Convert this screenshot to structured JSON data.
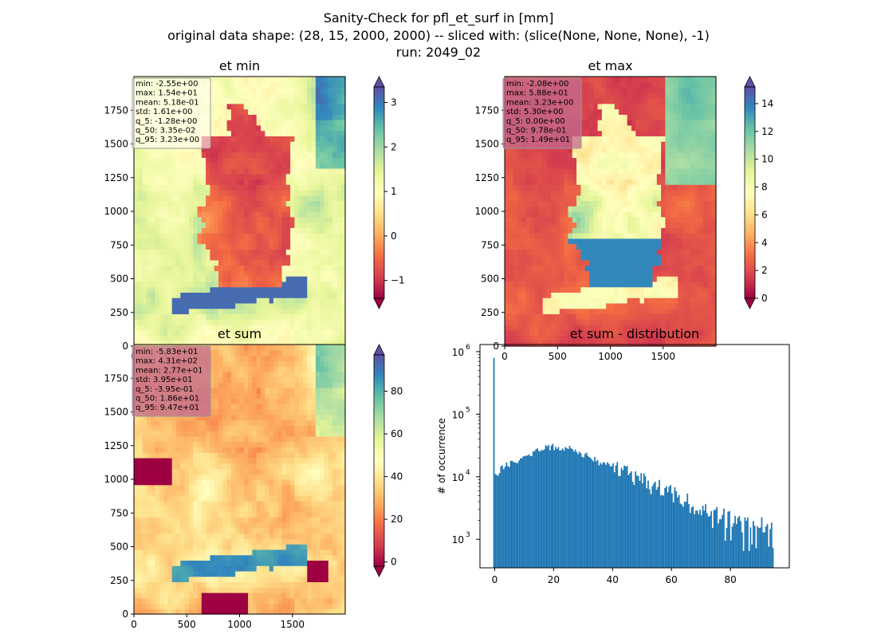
{
  "figure": {
    "suptitle_lines": [
      "Sanity-Check for pfl_et_surf in [mm]",
      "original data shape: (28, 15, 2000, 2000) -- sliced with: (slice(None, None, None), -1)",
      "run: 2049_02"
    ]
  },
  "colors": {
    "spectral": [
      "#9e0142",
      "#d53e4f",
      "#f46d43",
      "#fdae61",
      "#fee08b",
      "#ffffbf",
      "#e6f598",
      "#abdda4",
      "#66c2a5",
      "#3288bd",
      "#5e4fa2"
    ],
    "hist_bar": "#1f77b4",
    "statbox_bg": "#c26b8f"
  },
  "chart_data": [
    {
      "id": "et_min",
      "type": "heatmap",
      "title": "et min",
      "x_ticks": [
        "0",
        "500",
        "1000",
        "1500"
      ],
      "y_ticks": [
        "0",
        "250",
        "500",
        "750",
        "1000",
        "1250",
        "1500",
        "1750"
      ],
      "xlim": [
        0,
        2000
      ],
      "ylim": [
        0,
        2000
      ],
      "colorbar": {
        "ticks": [
          "−1",
          "0",
          "1",
          "2",
          "3"
        ],
        "tick_values": [
          -1,
          0,
          1,
          2,
          3
        ],
        "vmin": -1.4,
        "vmax": 3.35,
        "extend": "both"
      },
      "stats": [
        "min: -2.55e+00",
        "max: 1.54e+01",
        "mean: 5.18e-01",
        "std: 1.61e+00",
        "q_5: -1.28e+00",
        "q_50: 3.35e-02",
        "q_95: 3.23e+00"
      ]
    },
    {
      "id": "et_max",
      "type": "heatmap",
      "title": "et max",
      "x_ticks": [
        "0",
        "500",
        "1000",
        "1500"
      ],
      "y_ticks": [
        "0",
        "250",
        "500",
        "750",
        "1000",
        "1250",
        "1500",
        "1750"
      ],
      "xlim": [
        0,
        2000
      ],
      "ylim": [
        0,
        2000
      ],
      "colorbar": {
        "ticks": [
          "0",
          "2",
          "4",
          "6",
          "8",
          "10",
          "12",
          "14"
        ],
        "tick_values": [
          0,
          2,
          4,
          6,
          8,
          10,
          12,
          14
        ],
        "vmin": 0,
        "vmax": 15.2,
        "extend": "both"
      },
      "stats": [
        "min: -2.08e+00",
        "max: 5.88e+01",
        "mean: 3.23e+00",
        "std: 5.30e+00",
        "q_5: 0.00e+00",
        "q_50: 9.78e-01",
        "q_95: 1.49e+01"
      ]
    },
    {
      "id": "et_sum",
      "type": "heatmap",
      "title": "et sum",
      "x_ticks": [
        "0",
        "500",
        "1000",
        "1500"
      ],
      "y_ticks": [
        "0",
        "250",
        "500",
        "750",
        "1000",
        "1250",
        "1500",
        "1750"
      ],
      "xlim": [
        0,
        2000
      ],
      "ylim": [
        0,
        2000
      ],
      "colorbar": {
        "ticks": [
          "0",
          "20",
          "40",
          "60",
          "80"
        ],
        "tick_values": [
          0,
          20,
          40,
          60,
          80
        ],
        "vmin": -2,
        "vmax": 97,
        "extend": "both"
      },
      "stats": [
        "min: -5.83e+01",
        "max: 4.31e+02",
        "mean: 2.77e+01",
        "std: 3.95e+01",
        "q_5: -3.95e-01",
        "q_50: 1.86e+01",
        "q_95: 9.47e+01"
      ]
    },
    {
      "id": "et_sum_distribution",
      "type": "bar",
      "title": "et sum - distribution",
      "ylabel": "# of occurrence",
      "yscale": "log",
      "x_ticks": [
        "0",
        "20",
        "40",
        "60",
        "80"
      ],
      "x_tick_values": [
        0,
        20,
        40,
        60,
        80
      ],
      "y_ticks": [
        {
          "base": "10",
          "exp": "3",
          "value": 1000
        },
        {
          "base": "10",
          "exp": "4",
          "value": 10000
        },
        {
          "base": "10",
          "exp": "5",
          "value": 100000
        },
        {
          "base": "10",
          "exp": "6",
          "value": 1000000
        }
      ],
      "xlim": [
        -5,
        100
      ],
      "ylim": [
        350,
        1300000
      ],
      "bin_edges_range": [
        -0.5,
        94.7
      ],
      "bins": 200,
      "spike": {
        "x": -0.2,
        "value": 800000
      },
      "curve": [
        [
          0,
          10000
        ],
        [
          2,
          13000
        ],
        [
          5,
          16000
        ],
        [
          10,
          21000
        ],
        [
          15,
          27000
        ],
        [
          20,
          30000
        ],
        [
          25,
          29000
        ],
        [
          30,
          23000
        ],
        [
          35,
          17500
        ],
        [
          40,
          14000
        ],
        [
          45,
          11000
        ],
        [
          50,
          8500
        ],
        [
          55,
          6600
        ],
        [
          60,
          5200
        ],
        [
          65,
          4000
        ],
        [
          70,
          3100
        ],
        [
          75,
          2500
        ],
        [
          80,
          2000
        ],
        [
          85,
          1750
        ],
        [
          90,
          1600
        ],
        [
          94.7,
          1500
        ]
      ]
    }
  ]
}
